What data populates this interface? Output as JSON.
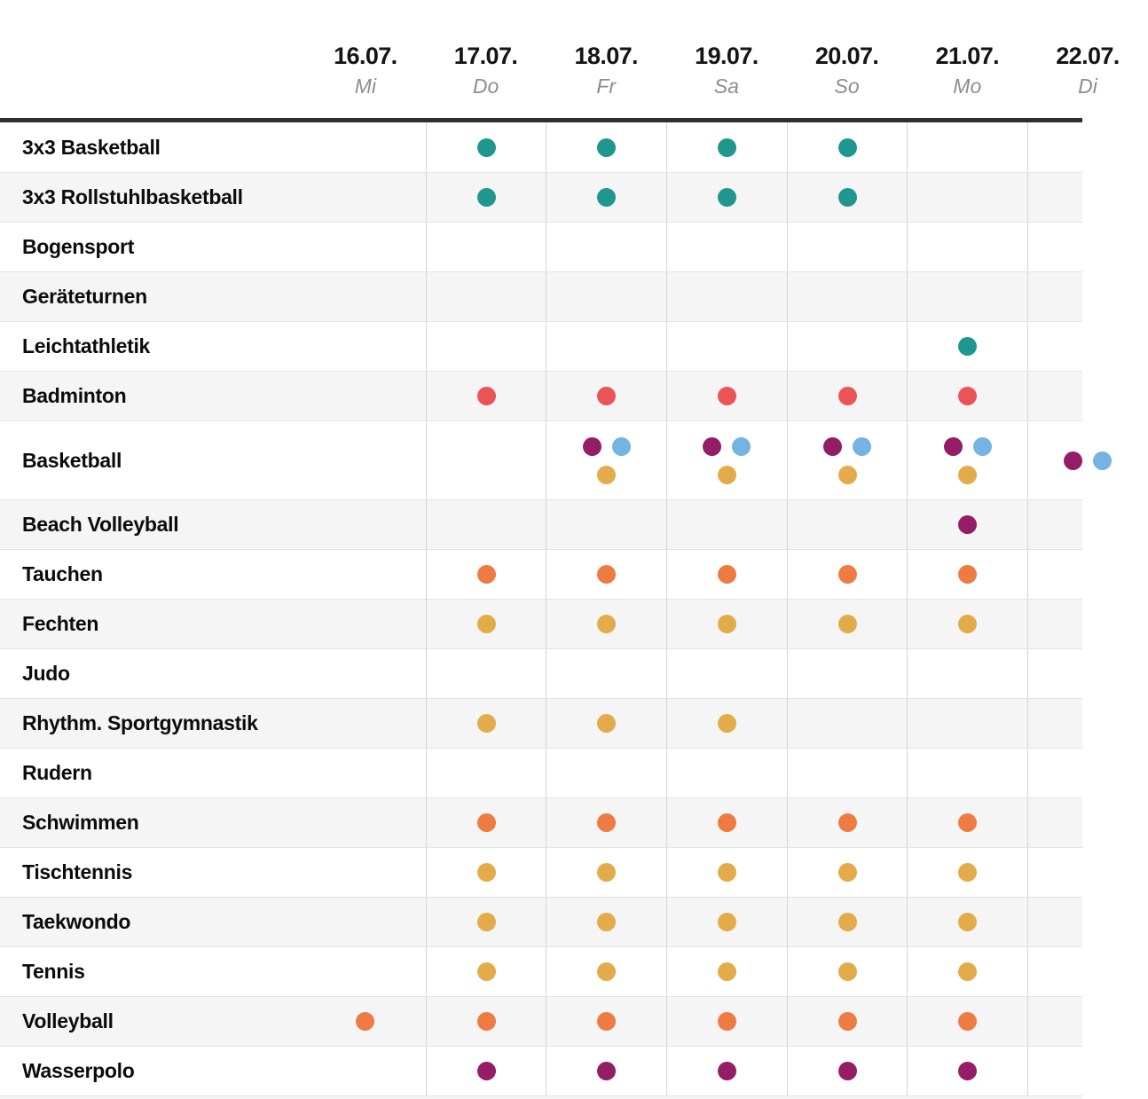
{
  "chart_data": {
    "type": "table",
    "title": "",
    "description": "Sport competition schedule matrix: sports as rows, dates as columns, colored dots marking event days",
    "palette": {
      "teal": "#1f968e",
      "red": "#ea5457",
      "purple": "#951c66",
      "blue": "#74b3e2",
      "yellow": "#e3ab49",
      "orange": "#ee7b41"
    },
    "columns": [
      {
        "date": "16.07.",
        "day": "Mi"
      },
      {
        "date": "17.07.",
        "day": "Do"
      },
      {
        "date": "18.07.",
        "day": "Fr"
      },
      {
        "date": "19.07.",
        "day": "Sa"
      },
      {
        "date": "20.07.",
        "day": "So"
      },
      {
        "date": "21.07.",
        "day": "Mo"
      },
      {
        "date": "22.07.",
        "day": "Di"
      }
    ],
    "rows": [
      {
        "label": "3x3 Basketball",
        "tall": false,
        "cells": [
          [],
          [
            [
              "teal"
            ]
          ],
          [
            [
              "teal"
            ]
          ],
          [
            [
              "teal"
            ]
          ],
          [
            [
              "teal"
            ]
          ],
          [],
          []
        ]
      },
      {
        "label": "3x3 Rollstuhlbasketball",
        "tall": false,
        "cells": [
          [],
          [
            [
              "teal"
            ]
          ],
          [
            [
              "teal"
            ]
          ],
          [
            [
              "teal"
            ]
          ],
          [
            [
              "teal"
            ]
          ],
          [],
          []
        ]
      },
      {
        "label": "Bogensport",
        "tall": false,
        "cells": [
          [],
          [],
          [],
          [],
          [],
          [],
          []
        ]
      },
      {
        "label": "Geräteturnen",
        "tall": false,
        "cells": [
          [],
          [],
          [],
          [],
          [],
          [],
          []
        ]
      },
      {
        "label": "Leichtathletik",
        "tall": false,
        "cells": [
          [],
          [],
          [],
          [],
          [],
          [
            [
              "teal"
            ]
          ],
          []
        ]
      },
      {
        "label": "Badminton",
        "tall": false,
        "cells": [
          [],
          [
            [
              "red"
            ]
          ],
          [
            [
              "red"
            ]
          ],
          [
            [
              "red"
            ]
          ],
          [
            [
              "red"
            ]
          ],
          [
            [
              "red"
            ]
          ],
          []
        ]
      },
      {
        "label": "Basketball",
        "tall": true,
        "cells": [
          [],
          [],
          [
            [
              "purple",
              "blue"
            ],
            [
              "yellow"
            ]
          ],
          [
            [
              "purple",
              "blue"
            ],
            [
              "yellow"
            ]
          ],
          [
            [
              "purple",
              "blue"
            ],
            [
              "yellow"
            ]
          ],
          [
            [
              "purple",
              "blue"
            ],
            [
              "yellow"
            ]
          ],
          [
            [
              "purple",
              "blue"
            ]
          ]
        ]
      },
      {
        "label": "Beach Volleyball",
        "tall": false,
        "cells": [
          [],
          [],
          [],
          [],
          [],
          [
            [
              "purple"
            ]
          ],
          []
        ]
      },
      {
        "label": "Tauchen",
        "tall": false,
        "cells": [
          [],
          [
            [
              "orange"
            ]
          ],
          [
            [
              "orange"
            ]
          ],
          [
            [
              "orange"
            ]
          ],
          [
            [
              "orange"
            ]
          ],
          [
            [
              "orange"
            ]
          ],
          []
        ]
      },
      {
        "label": "Fechten",
        "tall": false,
        "cells": [
          [],
          [
            [
              "yellow"
            ]
          ],
          [
            [
              "yellow"
            ]
          ],
          [
            [
              "yellow"
            ]
          ],
          [
            [
              "yellow"
            ]
          ],
          [
            [
              "yellow"
            ]
          ],
          []
        ]
      },
      {
        "label": "Judo",
        "tall": false,
        "cells": [
          [],
          [],
          [],
          [],
          [],
          [],
          []
        ]
      },
      {
        "label": "Rhythm. Sportgymnastik",
        "tall": false,
        "cells": [
          [],
          [
            [
              "yellow"
            ]
          ],
          [
            [
              "yellow"
            ]
          ],
          [
            [
              "yellow"
            ]
          ],
          [],
          [],
          []
        ]
      },
      {
        "label": "Rudern",
        "tall": false,
        "cells": [
          [],
          [],
          [],
          [],
          [],
          [],
          []
        ]
      },
      {
        "label": "Schwimmen",
        "tall": false,
        "cells": [
          [],
          [
            [
              "orange"
            ]
          ],
          [
            [
              "orange"
            ]
          ],
          [
            [
              "orange"
            ]
          ],
          [
            [
              "orange"
            ]
          ],
          [
            [
              "orange"
            ]
          ],
          []
        ]
      },
      {
        "label": "Tischtennis",
        "tall": false,
        "cells": [
          [],
          [
            [
              "yellow"
            ]
          ],
          [
            [
              "yellow"
            ]
          ],
          [
            [
              "yellow"
            ]
          ],
          [
            [
              "yellow"
            ]
          ],
          [
            [
              "yellow"
            ]
          ],
          []
        ]
      },
      {
        "label": "Taekwondo",
        "tall": false,
        "cells": [
          [],
          [
            [
              "yellow"
            ]
          ],
          [
            [
              "yellow"
            ]
          ],
          [
            [
              "yellow"
            ]
          ],
          [
            [
              "yellow"
            ]
          ],
          [
            [
              "yellow"
            ]
          ],
          []
        ]
      },
      {
        "label": "Tennis",
        "tall": false,
        "cells": [
          [],
          [
            [
              "yellow"
            ]
          ],
          [
            [
              "yellow"
            ]
          ],
          [
            [
              "yellow"
            ]
          ],
          [
            [
              "yellow"
            ]
          ],
          [
            [
              "yellow"
            ]
          ],
          []
        ]
      },
      {
        "label": "Volleyball",
        "tall": false,
        "cells": [
          [
            [
              "orange"
            ]
          ],
          [
            [
              "orange"
            ]
          ],
          [
            [
              "orange"
            ]
          ],
          [
            [
              "orange"
            ]
          ],
          [
            [
              "orange"
            ]
          ],
          [
            [
              "orange"
            ]
          ],
          []
        ]
      },
      {
        "label": "Wasserpolo",
        "tall": false,
        "cells": [
          [],
          [
            [
              "purple"
            ]
          ],
          [
            [
              "purple"
            ]
          ],
          [
            [
              "purple"
            ]
          ],
          [
            [
              "purple"
            ]
          ],
          [
            [
              "purple"
            ]
          ],
          []
        ]
      }
    ]
  }
}
